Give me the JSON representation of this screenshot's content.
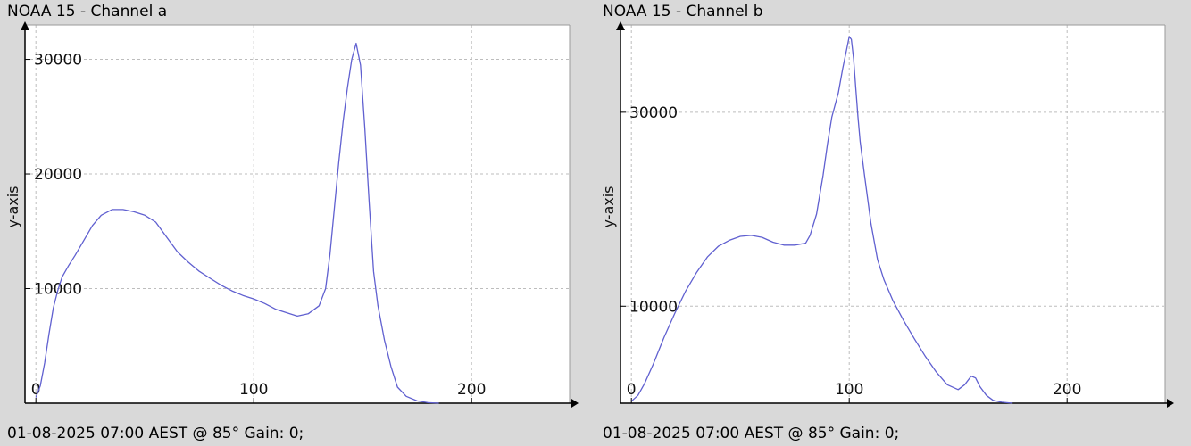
{
  "panels": [
    {
      "title": "NOAA 15 - Channel a",
      "footer": "01-08-2025 07:00 AEST @ 85° Gain: 0;"
    },
    {
      "title": "NOAA 15 - Channel b",
      "footer": "01-08-2025 07:00 AEST @ 85° Gain: 0;"
    }
  ],
  "chart_data": [
    {
      "type": "line",
      "title": "NOAA 15 - Channel a",
      "xlabel": "",
      "ylabel": "y-axis",
      "xlim": [
        -5,
        245
      ],
      "ylim": [
        0,
        33000
      ],
      "xticks": [
        0,
        100,
        200
      ],
      "yticks": [
        10000,
        20000,
        30000
      ],
      "grid": true,
      "line_color": "#6060d0",
      "series": [
        {
          "x": [
            0,
            2,
            4,
            6,
            8,
            10,
            12,
            15,
            18,
            22,
            26,
            30,
            35,
            40,
            45,
            50,
            55,
            60,
            65,
            70,
            75,
            80,
            85,
            90,
            95,
            100,
            105,
            110,
            115,
            120,
            125,
            130,
            133,
            135,
            137,
            139,
            141,
            143,
            145,
            147,
            149,
            151,
            153,
            155,
            157,
            160,
            163,
            166,
            170,
            175,
            180,
            185
          ],
          "y": [
            500,
            1500,
            3500,
            6000,
            8300,
            9800,
            11000,
            12000,
            12900,
            14200,
            15500,
            16400,
            16900,
            16900,
            16700,
            16400,
            15800,
            14500,
            13200,
            12300,
            11500,
            10900,
            10300,
            9800,
            9400,
            9100,
            8700,
            8200,
            7900,
            7600,
            7800,
            8500,
            10000,
            13000,
            17000,
            21000,
            24500,
            27500,
            30000,
            31400,
            29500,
            24000,
            17500,
            11500,
            8500,
            5500,
            3200,
            1400,
            600,
            200,
            50,
            0
          ]
        }
      ]
    },
    {
      "type": "line",
      "title": "NOAA 15 - Channel b",
      "xlabel": "",
      "ylabel": "y-axis",
      "xlim": [
        -5,
        245
      ],
      "ylim": [
        0,
        39000
      ],
      "xticks": [
        0,
        100,
        200
      ],
      "yticks": [
        10000,
        30000
      ],
      "grid": true,
      "line_color": "#6060d0",
      "series": [
        {
          "x": [
            0,
            3,
            6,
            10,
            15,
            20,
            25,
            30,
            35,
            40,
            45,
            50,
            55,
            60,
            65,
            70,
            75,
            80,
            82,
            85,
            88,
            90,
            92,
            95,
            97,
            99,
            100,
            101,
            102,
            103,
            104,
            105,
            107,
            110,
            113,
            116,
            120,
            125,
            130,
            135,
            140,
            145,
            150,
            153,
            156,
            158,
            160,
            163,
            166,
            170,
            175
          ],
          "y": [
            200,
            800,
            2000,
            4000,
            6800,
            9300,
            11600,
            13500,
            15100,
            16200,
            16800,
            17200,
            17300,
            17100,
            16600,
            16300,
            16300,
            16500,
            17300,
            19500,
            23500,
            26700,
            29500,
            32000,
            34500,
            36700,
            37800,
            37500,
            35500,
            32500,
            29500,
            27000,
            23500,
            18500,
            14800,
            12700,
            10600,
            8500,
            6600,
            4800,
            3200,
            1900,
            1400,
            1900,
            2800,
            2600,
            1700,
            800,
            300,
            100,
            0
          ]
        }
      ]
    }
  ]
}
